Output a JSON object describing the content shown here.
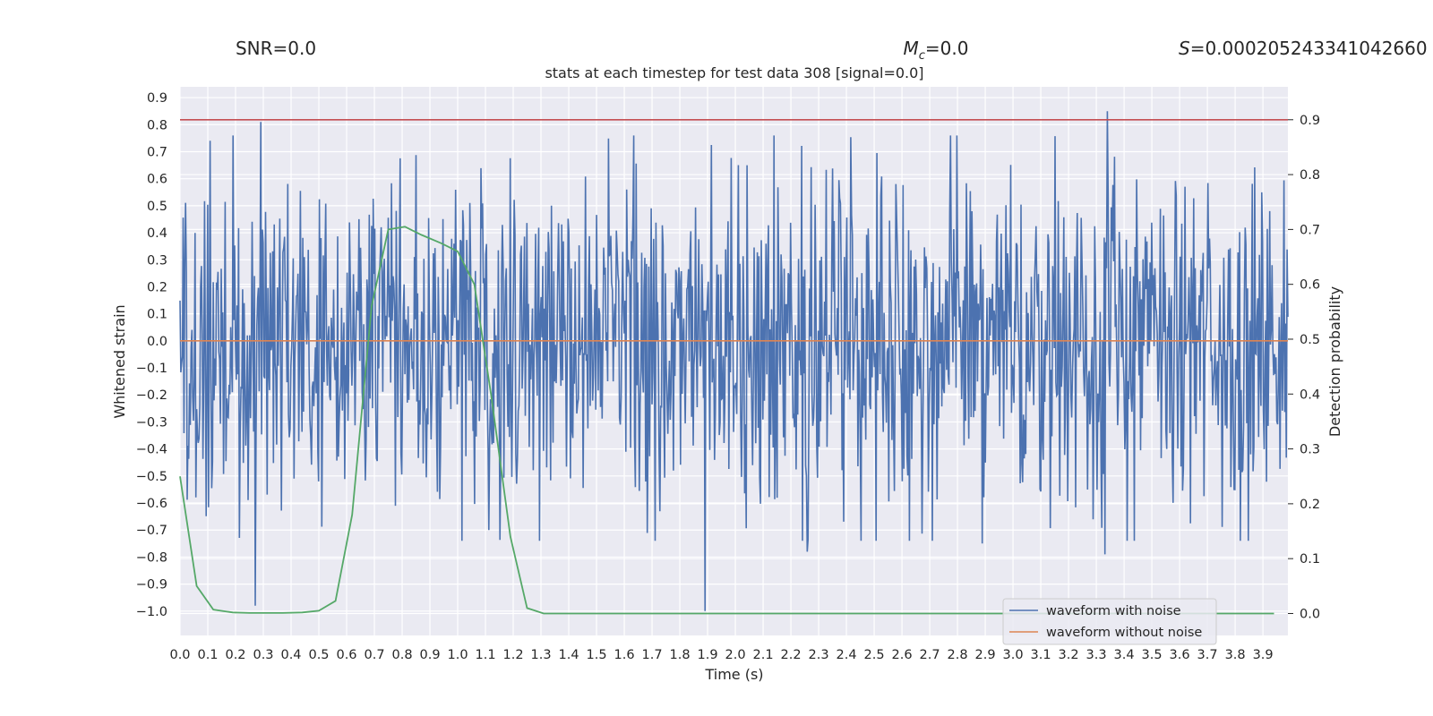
{
  "header": {
    "snr_label": "SNR=0.0",
    "mc_symbol": "M",
    "mc_subscript": "c",
    "mc_value": "=0.0",
    "s_symbol": "S",
    "s_value": "=0.000205243341042660"
  },
  "chart_data": {
    "type": "line",
    "title": "stats at each timestep for test data 308 [signal=0.0]",
    "xlabel": "Time (s)",
    "ylabel_left": "Whitened strain",
    "ylabel_right": "Detection probability",
    "xlim": [
      0.0,
      3.99
    ],
    "ylim_left": [
      -1.09,
      0.94
    ],
    "ylim_right": [
      -0.04,
      0.96
    ],
    "x_ticks": [
      "0.0",
      "0.1",
      "0.2",
      "0.3",
      "0.4",
      "0.5",
      "0.6",
      "0.7",
      "0.8",
      "0.9",
      "1.0",
      "1.1",
      "1.2",
      "1.3",
      "1.4",
      "1.5",
      "1.6",
      "1.7",
      "1.8",
      "1.9",
      "2.0",
      "2.1",
      "2.2",
      "2.3",
      "2.4",
      "2.5",
      "2.6",
      "2.7",
      "2.8",
      "2.9",
      "3.0",
      "3.1",
      "3.2",
      "3.3",
      "3.4",
      "3.5",
      "3.6",
      "3.7",
      "3.8",
      "3.9"
    ],
    "y_ticks_left": [
      "0.9",
      "0.8",
      "0.7",
      "0.6",
      "0.5",
      "0.4",
      "0.3",
      "0.2",
      "0.1",
      "0.0",
      "−0.1",
      "−0.2",
      "−0.3",
      "−0.4",
      "−0.5",
      "−0.6",
      "−0.7",
      "−0.8",
      "−0.9",
      "−1.0"
    ],
    "y_ticks_right": [
      "0.9",
      "0.8",
      "0.7",
      "0.6",
      "0.5",
      "0.4",
      "0.3",
      "0.2",
      "0.1",
      "0.0"
    ],
    "grid": true,
    "legend_position": "lower-right",
    "series": [
      {
        "name": "waveform with noise",
        "axis": "left",
        "color": "#4c72b0",
        "kind": "noise",
        "sample_count": 1400,
        "spikes": [
          {
            "x": 0.27,
            "y": -0.98
          },
          {
            "x": 0.29,
            "y": 0.81
          },
          {
            "x": 1.89,
            "y": -1.0
          },
          {
            "x": 3.34,
            "y": 0.85
          },
          {
            "x": 3.33,
            "y": -0.79
          },
          {
            "x": 2.89,
            "y": -0.75
          },
          {
            "x": 2.26,
            "y": -0.78
          }
        ]
      },
      {
        "name": "waveform without noise",
        "axis": "left",
        "color": "#dd8452",
        "constant": 0.0
      },
      {
        "name": "",
        "axis": "right",
        "color": "#55a868",
        "x": [
          0.0,
          0.06,
          0.12,
          0.19,
          0.25,
          0.31,
          0.37,
          0.44,
          0.5,
          0.56,
          0.62,
          0.69,
          0.75,
          0.81,
          0.87,
          0.94,
          1.0,
          1.06,
          1.12,
          1.19,
          1.25,
          1.31,
          1.37,
          1.5,
          2.0,
          2.5,
          3.0,
          3.5,
          3.94
        ],
        "values": [
          0.25,
          0.05,
          0.007,
          0.002,
          0.001,
          0.001,
          0.001,
          0.002,
          0.005,
          0.023,
          0.18,
          0.56,
          0.7,
          0.705,
          0.69,
          0.675,
          0.66,
          0.6,
          0.4,
          0.14,
          0.01,
          0.0,
          0.0,
          0.0,
          0.0,
          0.0,
          0.0,
          0.0,
          0.0
        ]
      },
      {
        "name": "",
        "axis": "right",
        "color": "#c44e52",
        "constant": 0.9
      }
    ]
  }
}
